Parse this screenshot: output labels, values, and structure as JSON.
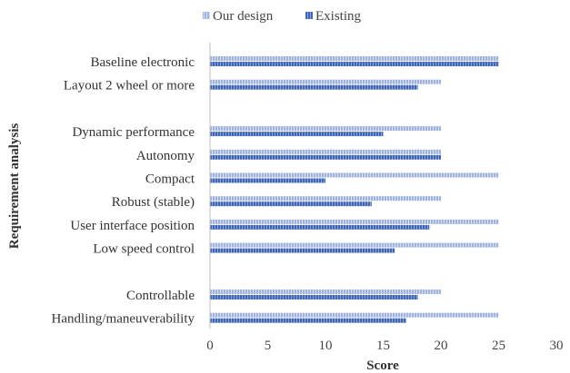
{
  "chart_data": {
    "type": "bar",
    "orientation": "horizontal",
    "categories": [
      "Baseline electronic",
      "Layout 2 wheel or more",
      "",
      "Dynamic performance",
      "Autonomy",
      "Compact",
      "Robust (stable)",
      "User interface position",
      "Low speed control",
      "",
      "Controllable",
      "Handling/maneuverability"
    ],
    "series": [
      {
        "name": "Our design",
        "color": "#a7b8e2",
        "values": [
          25,
          20,
          null,
          20,
          20,
          25,
          20,
          25,
          25,
          null,
          20,
          25
        ]
      },
      {
        "name": "Existing",
        "color": "#4a70bb",
        "values": [
          25,
          18,
          null,
          15,
          20,
          10,
          14,
          19,
          16,
          null,
          18,
          17
        ]
      }
    ],
    "xlabel": "Score",
    "ylabel": "Requirement analysis",
    "xlim": [
      0,
      30
    ],
    "xticks": [
      0,
      5,
      10,
      15,
      20,
      25,
      30
    ],
    "grid": false,
    "legend_position": "top"
  }
}
